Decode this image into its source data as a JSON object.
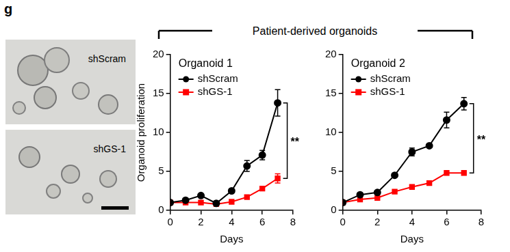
{
  "panel_label": "g",
  "header": "Patient-derived organoids",
  "images": [
    {
      "label": "shScram"
    },
    {
      "label": "shGS-1"
    }
  ],
  "chart_data": [
    {
      "type": "line",
      "title": "Organoid 1",
      "x_label": "Days",
      "y_label": "Organoid proliferation",
      "x": [
        0,
        1,
        2,
        3,
        4,
        5,
        6,
        7
      ],
      "series": [
        {
          "name": "shScram",
          "color": "#000000",
          "marker": "circle",
          "values": [
            1,
            1.3,
            1.9,
            0.9,
            2.5,
            5.7,
            7.1,
            13.8
          ],
          "errors": [
            null,
            null,
            null,
            null,
            null,
            0.7,
            0.6,
            1.7
          ]
        },
        {
          "name": "shGS-1",
          "color": "#ff0000",
          "marker": "square",
          "values": [
            1,
            1.0,
            1.0,
            0.8,
            1.1,
            1.7,
            2.8,
            4.1
          ],
          "errors": [
            null,
            null,
            null,
            null,
            null,
            null,
            null,
            0.6
          ]
        }
      ],
      "xlim": [
        0,
        8
      ],
      "xticks": [
        0,
        2,
        4,
        6,
        8
      ],
      "ylim": [
        0,
        20
      ],
      "yticks": [
        0,
        5,
        10,
        15,
        20
      ],
      "grid": false,
      "legend": "upper left",
      "significance": "**"
    },
    {
      "type": "line",
      "title": "Organoid 2",
      "x_label": "Days",
      "x": [
        0,
        1,
        2,
        3,
        4,
        5,
        6,
        7
      ],
      "series": [
        {
          "name": "shScram",
          "color": "#000000",
          "marker": "circle",
          "values": [
            1,
            2.0,
            2.3,
            4.5,
            7.5,
            8.3,
            11.6,
            13.7
          ],
          "errors": [
            null,
            null,
            null,
            null,
            0.5,
            null,
            1.0,
            0.8
          ]
        },
        {
          "name": "shGS-1",
          "color": "#ff0000",
          "marker": "square",
          "values": [
            1,
            1.4,
            1.6,
            2.4,
            3.0,
            3.5,
            4.8,
            4.8
          ],
          "errors": [
            null,
            null,
            null,
            null,
            null,
            null,
            null,
            null
          ]
        }
      ],
      "xlim": [
        0,
        8
      ],
      "xticks": [
        0,
        2,
        4,
        6,
        8
      ],
      "ylim": [
        0,
        20
      ],
      "yticks": [
        0,
        5,
        10,
        15,
        20
      ],
      "grid": false,
      "legend": "upper left",
      "significance": "**"
    }
  ]
}
